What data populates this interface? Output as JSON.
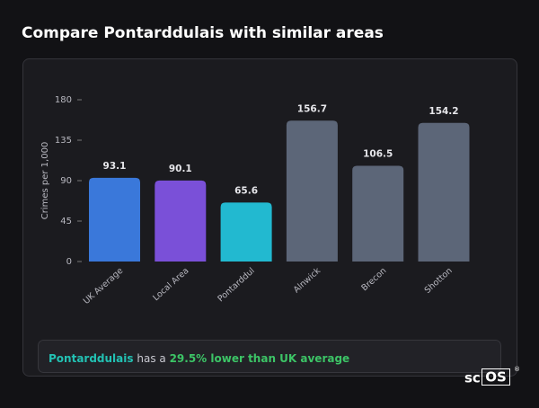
{
  "title": "Compare Pontarddulais with similar areas",
  "chart_data": {
    "type": "bar",
    "y_label": "Crimes per 1,000",
    "categories": [
      "UK Average",
      "Local Area",
      "Pontarddul",
      "Alnwick",
      "Brecon",
      "Shotton"
    ],
    "values": [
      93.1,
      90.1,
      65.6,
      156.7,
      106.5,
      154.2
    ],
    "colors": [
      "#3a78da",
      "#7a50d8",
      "#22b9d0",
      "#5c6678",
      "#5c6678",
      "#5c6678"
    ],
    "ylim": [
      0,
      180
    ],
    "yticks": [
      0,
      45,
      90,
      135,
      180
    ]
  },
  "summary": {
    "place": "Pontarddulais",
    "text": "has a",
    "highlight": "29.5% lower than UK average"
  },
  "logo": {
    "text": "sc",
    "boxed": "OS",
    "mark": "®"
  }
}
